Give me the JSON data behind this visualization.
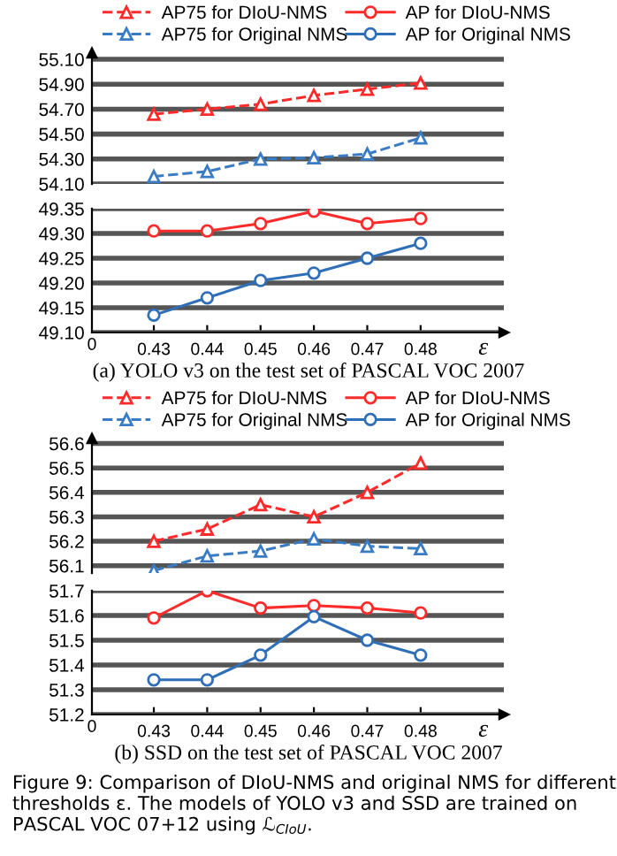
{
  "chart_data": [
    {
      "type": "line",
      "categories": [
        "0.43",
        "0.44",
        "0.45",
        "0.46",
        "0.47",
        "0.48"
      ],
      "ylim": [
        54.1,
        55.15
      ],
      "yticks": [
        {
          "value": 54.1,
          "label": "54.10"
        },
        {
          "value": 54.3,
          "label": "54.30"
        },
        {
          "value": 54.5,
          "label": "54.50"
        },
        {
          "value": 54.7,
          "label": "54.70"
        },
        {
          "value": 54.9,
          "label": "54.90"
        },
        {
          "value": 55.1,
          "label": "55.10"
        }
      ],
      "grid": "y",
      "legend": "top left",
      "tick_labels": "y",
      "series": [
        {
          "name": "AP75 for DIoU-NMS",
          "color": "#ff2a2a",
          "marker": "triangle",
          "line_style": "dashed",
          "values": [
            54.66,
            54.7,
            54.74,
            54.81,
            54.86,
            54.91
          ]
        },
        {
          "name": "AP75 for Original NMS",
          "color": "#3a7cc4",
          "marker": "triangle",
          "line_style": "dashed",
          "values": [
            54.16,
            54.2,
            54.3,
            54.31,
            54.34,
            54.47
          ]
        }
      ]
    },
    {
      "type": "line",
      "categories": [
        "0.43",
        "0.44",
        "0.45",
        "0.46",
        "0.47",
        "0.48"
      ],
      "ylim": [
        49.1,
        49.35
      ],
      "yticks": [
        {
          "value": 49.1,
          "label": "49.10"
        },
        49.15,
        {
          "value": 49.2,
          "label": "49.20"
        },
        49.25,
        {
          "value": 49.3,
          "label": "49.30"
        },
        49.35
      ],
      "grid": "y",
      "legend": "top right",
      "xlabel": "ε",
      "title": "(a) YOLO v3 on the test set of PASCAL VOC 2007",
      "annotations": [
        "0"
      ],
      "series": [
        {
          "name": "AP for DIoU-NMS",
          "color": "#ff2a2a",
          "marker": "circle",
          "line_style": "solid",
          "values": [
            49.305,
            49.305,
            49.32,
            49.345,
            49.32,
            49.33
          ]
        },
        {
          "name": "AP for Original NMS",
          "color": "#2f6fb8",
          "marker": "circle",
          "line_style": "solid",
          "values": [
            49.135,
            49.17,
            49.205,
            49.22,
            49.25,
            49.28
          ]
        }
      ]
    },
    {
      "type": "line",
      "categories": [
        "0.43",
        "0.44",
        "0.45",
        "0.46",
        "0.47",
        "0.48"
      ],
      "ylim": [
        56.07,
        56.62
      ],
      "yticks": [
        56.1,
        56.2,
        56.3,
        56.4,
        56.5,
        56.6
      ],
      "grid": "y",
      "legend": "top left",
      "tick_labels": "y",
      "series": [
        {
          "name": "AP75 for DIoU-NMS",
          "color": "#ff2a2a",
          "marker": "triangle",
          "line_style": "dashed",
          "values": [
            56.2,
            56.25,
            56.35,
            56.3,
            56.4,
            56.52
          ]
        },
        {
          "name": "AP75 for Original NMS",
          "color": "#3a7cc4",
          "marker": "triangle",
          "line_style": "dashed",
          "values": [
            56.08,
            56.14,
            56.16,
            56.21,
            56.18,
            56.17
          ]
        }
      ]
    },
    {
      "type": "line",
      "categories": [
        "0.43",
        "0.44",
        "0.45",
        "0.46",
        "0.47",
        "0.48"
      ],
      "ylim": [
        51.2,
        51.7
      ],
      "yticks": [
        51.2,
        51.3,
        51.4,
        51.5,
        51.6,
        51.7
      ],
      "grid": "y",
      "legend": "top right",
      "xlabel": "ε",
      "title": "(b) SSD on the test set of PASCAL VOC 2007",
      "annotations": [
        "0",
        "Figure 9: Comparison of DIoU-NMS and original NMS for different thresholds ε. The models of YOLO v3 and SSD are trained on PASCAL VOC 07+12 using ℒ$_{CIoU}$."
      ],
      "series": [
        {
          "name": "AP for DIoU-NMS",
          "color": "#ff2a2a",
          "marker": "circle",
          "line_style": "solid",
          "values": [
            51.59,
            51.7,
            51.63,
            51.64,
            51.63,
            51.61
          ]
        },
        {
          "name": "AP for Original NMS",
          "color": "#2f6fb8",
          "marker": "circle",
          "line_style": "solid",
          "values": [
            51.34,
            51.34,
            51.44,
            51.595,
            51.5,
            51.44
          ]
        }
      ]
    }
  ]
}
